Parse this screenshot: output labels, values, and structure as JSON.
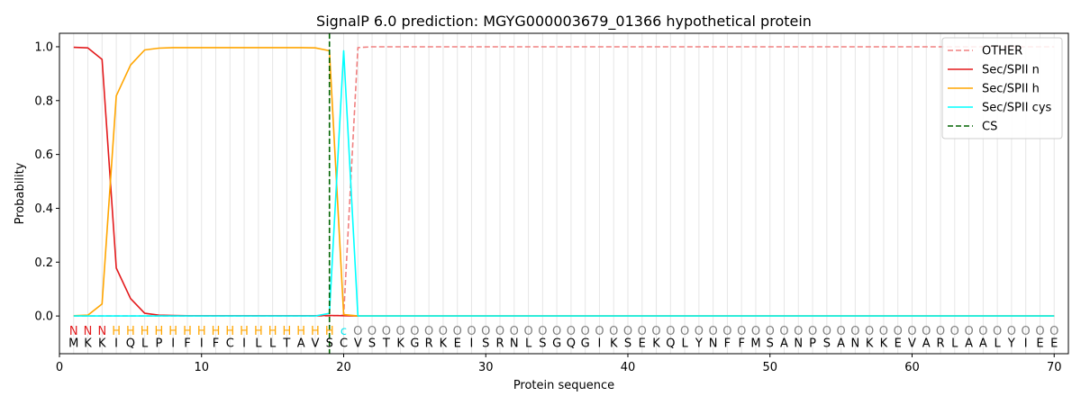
{
  "chart_data": {
    "type": "line",
    "title": "SignalP 6.0 prediction: MGYG000003679_01366 hypothetical protein",
    "xlabel": "Protein sequence",
    "ylabel": "Probability",
    "xlim": [
      0,
      71
    ],
    "ylim": [
      -0.14,
      1.05
    ],
    "x_ticks": [
      0,
      10,
      20,
      30,
      40,
      50,
      60,
      70
    ],
    "y_ticks": [
      0.0,
      0.2,
      0.4,
      0.6,
      0.8,
      1.0
    ],
    "x_tick_labels": [
      "0",
      "10",
      "20",
      "30",
      "40",
      "50",
      "60",
      "70"
    ],
    "y_tick_labels": [
      "0.0",
      "0.2",
      "0.4",
      "0.6",
      "0.8",
      "1.0"
    ],
    "grid": "vertical lines at each residue",
    "legend_position": "top-right",
    "sequence": [
      "M",
      "K",
      "K",
      "I",
      "Q",
      "L",
      "P",
      "I",
      "F",
      "I",
      "F",
      "C",
      "I",
      "L",
      "L",
      "T",
      "A",
      "V",
      "S",
      "C",
      "V",
      "S",
      "T",
      "K",
      "G",
      "R",
      "K",
      "E",
      "I",
      "S",
      "R",
      "N",
      "L",
      "S",
      "G",
      "Q",
      "G",
      "I",
      "K",
      "S",
      "E",
      "K",
      "Q",
      "L",
      "Y",
      "N",
      "F",
      "F",
      "M",
      "S",
      "A",
      "N",
      "P",
      "S",
      "A",
      "N",
      "K",
      "K",
      "E",
      "V",
      "A",
      "R",
      "L",
      "A",
      "A",
      "L",
      "Y",
      "I",
      "E",
      "E"
    ],
    "labels": [
      "N",
      "N",
      "N",
      "H",
      "H",
      "H",
      "H",
      "H",
      "H",
      "H",
      "H",
      "H",
      "H",
      "H",
      "H",
      "H",
      "H",
      "H",
      "H",
      "c",
      "O",
      "O",
      "O",
      "O",
      "O",
      "O",
      "O",
      "O",
      "O",
      "O",
      "O",
      "O",
      "O",
      "O",
      "O",
      "O",
      "O",
      "O",
      "O",
      "O",
      "O",
      "O",
      "O",
      "O",
      "O",
      "O",
      "O",
      "O",
      "O",
      "O",
      "O",
      "O",
      "O",
      "O",
      "O",
      "O",
      "O",
      "O",
      "O",
      "O",
      "O",
      "O",
      "O",
      "O",
      "O",
      "O",
      "O",
      "O",
      "O",
      "O"
    ],
    "label_colors": {
      "N": "#e31a1c",
      "H": "#ffa500",
      "c": "#00e5ee",
      "O": "#808080"
    },
    "cs_position": 19,
    "series": [
      {
        "name": "OTHER",
        "color": "#f08080",
        "dash": "dashed",
        "x": [
          1,
          2,
          3,
          4,
          5,
          6,
          7,
          8,
          9,
          10,
          11,
          12,
          13,
          14,
          15,
          16,
          17,
          18,
          19,
          20,
          21,
          22,
          23,
          24,
          25,
          26,
          27,
          28,
          29,
          30,
          31,
          32,
          33,
          34,
          35,
          36,
          37,
          38,
          39,
          40,
          41,
          42,
          43,
          44,
          45,
          46,
          47,
          48,
          49,
          50,
          51,
          52,
          53,
          54,
          55,
          56,
          57,
          58,
          59,
          60,
          61,
          62,
          63,
          64,
          65,
          66,
          67,
          68,
          69,
          70
        ],
        "values": [
          0,
          0,
          0,
          0,
          0,
          0,
          0,
          0,
          0,
          0,
          0,
          0,
          0,
          0,
          0,
          0,
          0,
          0,
          0,
          0.003,
          0.997,
          1,
          1,
          1,
          1,
          1,
          1,
          1,
          1,
          1,
          1,
          1,
          1,
          1,
          1,
          1,
          1,
          1,
          1,
          1,
          1,
          1,
          1,
          1,
          1,
          1,
          1,
          1,
          1,
          1,
          1,
          1,
          1,
          1,
          1,
          1,
          1,
          1,
          1,
          1,
          1,
          1,
          1,
          1,
          1,
          1,
          1,
          1,
          1,
          1
        ]
      },
      {
        "name": "Sec/SPII n",
        "color": "#e31a1c",
        "dash": "solid",
        "x": [
          1,
          2,
          3,
          4,
          5,
          6,
          7,
          8,
          9,
          10,
          11,
          12,
          13,
          14,
          15,
          16,
          17,
          18,
          19,
          20,
          21,
          22,
          23,
          24,
          25,
          26,
          27,
          28,
          29,
          30,
          31,
          32,
          33,
          34,
          35,
          36,
          37,
          38,
          39,
          40,
          41,
          42,
          43,
          44,
          45,
          46,
          47,
          48,
          49,
          50,
          51,
          52,
          53,
          54,
          55,
          56,
          57,
          58,
          59,
          60,
          61,
          62,
          63,
          64,
          65,
          66,
          67,
          68,
          69,
          70
        ],
        "values": [
          0.998,
          0.996,
          0.953,
          0.178,
          0.065,
          0.01,
          0.003,
          0.002,
          0.001,
          0.001,
          0.001,
          0.001,
          0.001,
          0.001,
          0.001,
          0.001,
          0.001,
          0.001,
          0.002,
          0.001,
          0,
          0,
          0,
          0,
          0,
          0,
          0,
          0,
          0,
          0,
          0,
          0,
          0,
          0,
          0,
          0,
          0,
          0,
          0,
          0,
          0,
          0,
          0,
          0,
          0,
          0,
          0,
          0,
          0,
          0,
          0,
          0,
          0,
          0,
          0,
          0,
          0,
          0,
          0,
          0,
          0,
          0,
          0,
          0,
          0,
          0,
          0,
          0,
          0,
          0
        ]
      },
      {
        "name": "Sec/SPII h",
        "color": "#ffa500",
        "dash": "solid",
        "x": [
          1,
          2,
          3,
          4,
          5,
          6,
          7,
          8,
          9,
          10,
          11,
          12,
          13,
          14,
          15,
          16,
          17,
          18,
          19,
          20,
          21,
          22,
          23,
          24,
          25,
          26,
          27,
          28,
          29,
          30,
          31,
          32,
          33,
          34,
          35,
          36,
          37,
          38,
          39,
          40,
          41,
          42,
          43,
          44,
          45,
          46,
          47,
          48,
          49,
          50,
          51,
          52,
          53,
          54,
          55,
          56,
          57,
          58,
          59,
          60,
          61,
          62,
          63,
          64,
          65,
          66,
          67,
          68,
          69,
          70
        ],
        "values": [
          0.001,
          0.003,
          0.045,
          0.818,
          0.932,
          0.988,
          0.995,
          0.997,
          0.997,
          0.997,
          0.997,
          0.997,
          0.997,
          0.997,
          0.997,
          0.997,
          0.997,
          0.996,
          0.985,
          0.005,
          0,
          0,
          0,
          0,
          0,
          0,
          0,
          0,
          0,
          0,
          0,
          0,
          0,
          0,
          0,
          0,
          0,
          0,
          0,
          0,
          0,
          0,
          0,
          0,
          0,
          0,
          0,
          0,
          0,
          0,
          0,
          0,
          0,
          0,
          0,
          0,
          0,
          0,
          0,
          0,
          0,
          0,
          0,
          0,
          0,
          0,
          0,
          0,
          0,
          0
        ]
      },
      {
        "name": "Sec/SPII cys",
        "color": "#00ffff",
        "dash": "solid",
        "x": [
          1,
          2,
          3,
          4,
          5,
          6,
          7,
          8,
          9,
          10,
          11,
          12,
          13,
          14,
          15,
          16,
          17,
          18,
          19,
          20,
          21,
          22,
          23,
          24,
          25,
          26,
          27,
          28,
          29,
          30,
          31,
          32,
          33,
          34,
          35,
          36,
          37,
          38,
          39,
          40,
          41,
          42,
          43,
          44,
          45,
          46,
          47,
          48,
          49,
          50,
          51,
          52,
          53,
          54,
          55,
          56,
          57,
          58,
          59,
          60,
          61,
          62,
          63,
          64,
          65,
          66,
          67,
          68,
          69,
          70
        ],
        "values": [
          0,
          0,
          0,
          0,
          0,
          0,
          0,
          0,
          0,
          0,
          0,
          0,
          0,
          0,
          0,
          0,
          0,
          0,
          0.01,
          0.985,
          0,
          0,
          0,
          0,
          0,
          0,
          0,
          0,
          0,
          0,
          0,
          0,
          0,
          0,
          0,
          0,
          0,
          0,
          0,
          0,
          0,
          0,
          0,
          0,
          0,
          0,
          0,
          0,
          0,
          0,
          0,
          0,
          0,
          0,
          0,
          0,
          0,
          0,
          0,
          0,
          0,
          0,
          0,
          0,
          0,
          0,
          0,
          0,
          0,
          0
        ]
      }
    ],
    "legend": [
      {
        "name": "OTHER",
        "color": "#f08080",
        "dash": "dashed"
      },
      {
        "name": "Sec/SPII n",
        "color": "#e31a1c",
        "dash": "solid"
      },
      {
        "name": "Sec/SPII h",
        "color": "#ffa500",
        "dash": "solid"
      },
      {
        "name": "Sec/SPII cys",
        "color": "#00ffff",
        "dash": "solid"
      },
      {
        "name": "CS",
        "color": "#006400",
        "dash": "dashed"
      }
    ]
  }
}
